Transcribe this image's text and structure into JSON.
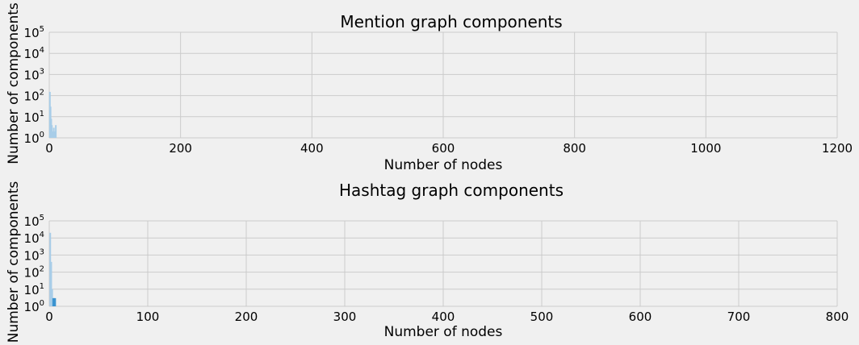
{
  "chart_data": [
    {
      "type": "bar",
      "title": "Mention graph components",
      "xlabel": "Number of nodes",
      "ylabel": "Number of components",
      "xlim": [
        0,
        1200
      ],
      "ylim": [
        1,
        100000
      ],
      "yscale": "log",
      "xticks": [
        0,
        200,
        400,
        600,
        800,
        1000,
        1200
      ],
      "yticks": [
        1,
        10,
        100,
        1000,
        10000,
        100000
      ],
      "ytick_labels": [
        {
          "base": "10",
          "exp": "0"
        },
        {
          "base": "10",
          "exp": "1"
        },
        {
          "base": "10",
          "exp": "2"
        },
        {
          "base": "10",
          "exp": "3"
        },
        {
          "base": "10",
          "exp": "4"
        },
        {
          "base": "10",
          "exp": "5"
        }
      ],
      "grid": true,
      "bar_color": "#a8cde8",
      "x": [
        1,
        2,
        3,
        4,
        5,
        6,
        7,
        8,
        9,
        10
      ],
      "values": [
        150,
        30,
        8,
        4,
        2,
        1,
        3,
        2,
        1,
        4
      ]
    },
    {
      "type": "bar",
      "title": "Hashtag graph components",
      "xlabel": "Number of nodes",
      "ylabel": "Number of components",
      "xlim": [
        0,
        800
      ],
      "ylim": [
        1,
        100000
      ],
      "yscale": "log",
      "xticks": [
        0,
        100,
        200,
        300,
        400,
        500,
        600,
        700,
        800
      ],
      "yticks": [
        1,
        10,
        100,
        1000,
        10000,
        100000
      ],
      "ytick_labels": [
        {
          "base": "10",
          "exp": "0"
        },
        {
          "base": "10",
          "exp": "1"
        },
        {
          "base": "10",
          "exp": "2"
        },
        {
          "base": "10",
          "exp": "3"
        },
        {
          "base": "10",
          "exp": "4"
        },
        {
          "base": "10",
          "exp": "5"
        }
      ],
      "grid": true,
      "bar_color": "#a8cde8",
      "accent_color": "#3a93d0",
      "x": [
        1,
        2,
        3,
        4,
        5,
        6
      ],
      "values": [
        20000,
        400,
        10,
        3,
        3,
        3
      ]
    }
  ]
}
